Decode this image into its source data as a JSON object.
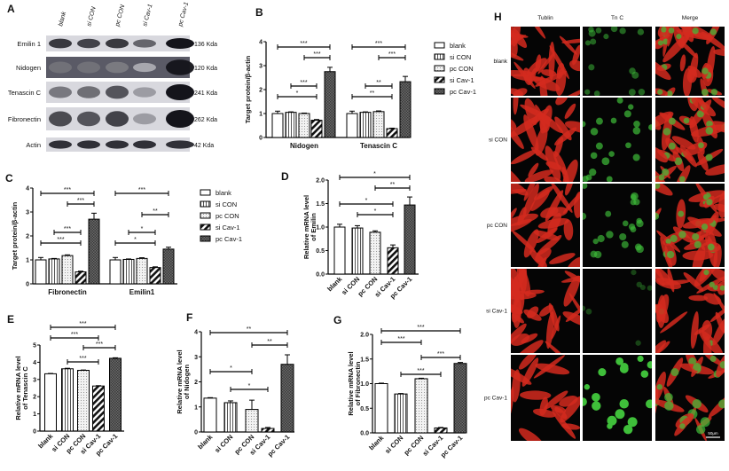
{
  "panels": {
    "A": "A",
    "B": "B",
    "C": "C",
    "D": "D",
    "E": "E",
    "F": "F",
    "G": "G",
    "H": "H"
  },
  "legend": [
    "blank",
    "si CON",
    "pc CON",
    "si Cav-1",
    "pc Cav-1"
  ],
  "blot": {
    "lanes": [
      "blank",
      "si CON",
      "pc CON",
      "si Cav-1",
      "pc Cav-1"
    ],
    "rows": [
      {
        "label": "Emilin 1",
        "kda": "136 Kda",
        "band_intensity": [
          0.8,
          0.75,
          0.8,
          0.55,
          1.0
        ]
      },
      {
        "label": "Nidogen",
        "kda": "120 Kda",
        "band_intensity": [
          0.45,
          0.45,
          0.4,
          0.15,
          0.95
        ]
      },
      {
        "label": "Tenascin C",
        "kda": "241 Kda",
        "band_intensity": [
          0.45,
          0.5,
          0.65,
          0.25,
          1.0
        ]
      },
      {
        "label": "Fibronectin",
        "kda": "262 Kda",
        "band_intensity": [
          0.7,
          0.65,
          0.75,
          0.25,
          1.0
        ]
      },
      {
        "label": "Actin",
        "kda": "42 Kda",
        "band_intensity": [
          0.85,
          0.85,
          0.85,
          0.85,
          0.85
        ]
      }
    ]
  },
  "microscopy": {
    "columns": [
      "Tublin",
      "Tn C",
      "Merge"
    ],
    "rows": [
      "blank",
      "si CON",
      "pc CON",
      "si Cav-1",
      "pc Cav-1"
    ],
    "scale_bar": "50μm",
    "colors": {
      "tublin": "#d42a1e",
      "tnc": "#3fbf3a"
    }
  },
  "chart_data": [
    {
      "panel": "B",
      "type": "bar",
      "grouped": true,
      "ylabel": "Target protein/β-actin",
      "ylim": [
        0,
        4
      ],
      "yticks": [
        "0",
        "1",
        "2",
        "3",
        "4"
      ],
      "categories": [
        "Nidogen",
        "Tenascin C"
      ],
      "series": [
        {
          "name": "blank",
          "values": [
            1.0,
            1.0
          ],
          "errors": [
            0.1,
            0.1
          ]
        },
        {
          "name": "si CON",
          "values": [
            1.05,
            1.05
          ],
          "errors": [
            0.02,
            0.02
          ]
        },
        {
          "name": "pc CON",
          "values": [
            1.0,
            1.08
          ],
          "errors": [
            0.02,
            0.03
          ]
        },
        {
          "name": "si Cav-1",
          "values": [
            0.72,
            0.37
          ],
          "errors": [
            0.03,
            0.02
          ]
        },
        {
          "name": "pc Cav-1",
          "values": [
            2.75,
            2.33
          ],
          "errors": [
            0.18,
            0.22
          ]
        }
      ],
      "significance": [
        {
          "group": 0,
          "from": 0,
          "to": 4,
          "label": "***"
        },
        {
          "group": 0,
          "from": 2,
          "to": 4,
          "label": "***"
        },
        {
          "group": 0,
          "from": 1,
          "to": 3,
          "label": "***"
        },
        {
          "group": 0,
          "from": 0,
          "to": 3,
          "label": "*"
        },
        {
          "group": 1,
          "from": 0,
          "to": 4,
          "label": "***"
        },
        {
          "group": 1,
          "from": 2,
          "to": 4,
          "label": "***"
        },
        {
          "group": 1,
          "from": 0,
          "to": 3,
          "label": "**"
        },
        {
          "group": 1,
          "from": 1,
          "to": 3,
          "label": "**"
        }
      ]
    },
    {
      "panel": "C",
      "type": "bar",
      "grouped": true,
      "ylabel": "Target protein/β-actin",
      "ylim": [
        0,
        4
      ],
      "yticks": [
        "0",
        "1",
        "2",
        "3",
        "4"
      ],
      "categories": [
        "Fibronectin",
        "Emilin1"
      ],
      "series": [
        {
          "name": "blank",
          "values": [
            1.0,
            1.0
          ],
          "errors": [
            0.1,
            0.1
          ]
        },
        {
          "name": "si CON",
          "values": [
            1.04,
            1.02
          ],
          "errors": [
            0.02,
            0.02
          ]
        },
        {
          "name": "pc CON",
          "values": [
            1.18,
            1.06
          ],
          "errors": [
            0.03,
            0.03
          ]
        },
        {
          "name": "si Cav-1",
          "values": [
            0.5,
            0.68
          ],
          "errors": [
            0.03,
            0.03
          ]
        },
        {
          "name": "pc Cav-1",
          "values": [
            2.7,
            1.45
          ],
          "errors": [
            0.25,
            0.08
          ]
        }
      ],
      "significance": [
        {
          "group": 0,
          "from": 0,
          "to": 4,
          "label": "***"
        },
        {
          "group": 0,
          "from": 2,
          "to": 4,
          "label": "***"
        },
        {
          "group": 0,
          "from": 1,
          "to": 3,
          "label": "***"
        },
        {
          "group": 0,
          "from": 0,
          "to": 3,
          "label": "***"
        },
        {
          "group": 1,
          "from": 0,
          "to": 4,
          "label": "***"
        },
        {
          "group": 1,
          "from": 0,
          "to": 3,
          "label": "*"
        },
        {
          "group": 1,
          "from": 2,
          "to": 4,
          "label": "**"
        },
        {
          "group": 1,
          "from": 1,
          "to": 3,
          "label": "*"
        }
      ]
    },
    {
      "panel": "D",
      "type": "bar",
      "ylabel": "Relative mRNA level",
      "ylabel2": "of Emilin",
      "ylim": [
        0,
        2
      ],
      "yticks": [
        "0.0",
        "0.5",
        "1.0",
        "1.5",
        "2.0"
      ],
      "categories": [
        "blank",
        "si CON",
        "pc CON",
        "si Cav-1",
        "pc Cav-1"
      ],
      "values": [
        1.0,
        0.98,
        0.89,
        0.56,
        1.47
      ],
      "errors": [
        0.06,
        0.05,
        0.03,
        0.06,
        0.17
      ],
      "significance": [
        {
          "from": 0,
          "to": 4,
          "label": "*"
        },
        {
          "from": 2,
          "to": 4,
          "label": "**"
        },
        {
          "from": 0,
          "to": 3,
          "label": "*"
        },
        {
          "from": 1,
          "to": 3,
          "label": "*"
        }
      ]
    },
    {
      "panel": "E",
      "type": "bar",
      "ylabel": "Relative mRNA level",
      "ylabel2": "of Tenascin C",
      "ylim": [
        0,
        5
      ],
      "yticks": [
        "0",
        "1",
        "2",
        "3",
        "4",
        "5"
      ],
      "categories": [
        "blank",
        "si CON",
        "pc CON",
        "si Cav-1",
        "pc Cav-1"
      ],
      "values": [
        3.33,
        3.62,
        3.53,
        2.62,
        4.23
      ],
      "errors": [
        0.02,
        0.03,
        0.02,
        0.02,
        0.03
      ],
      "significance": [
        {
          "from": 0,
          "to": 4,
          "label": "***"
        },
        {
          "from": 0,
          "to": 3,
          "label": "***"
        },
        {
          "from": 2,
          "to": 4,
          "label": "***"
        },
        {
          "from": 1,
          "to": 3,
          "label": "***"
        }
      ]
    },
    {
      "panel": "F",
      "type": "bar",
      "ylabel": "Relative mRNA level",
      "ylabel2": "of Nidogen",
      "ylim": [
        0,
        4
      ],
      "yticks": [
        "0",
        "1",
        "2",
        "3",
        "4"
      ],
      "categories": [
        "blank",
        "si CON",
        "pc CON",
        "si Cav-1",
        "pc Cav-1"
      ],
      "values": [
        1.35,
        1.17,
        0.9,
        0.14,
        2.7
      ],
      "errors": [
        0.02,
        0.07,
        0.37,
        0.04,
        0.38
      ],
      "significance": [
        {
          "from": 0,
          "to": 4,
          "label": "**"
        },
        {
          "from": 2,
          "to": 4,
          "label": "**"
        },
        {
          "from": 0,
          "to": 2,
          "label": "*"
        },
        {
          "from": 1,
          "to": 3,
          "label": "*"
        }
      ]
    },
    {
      "panel": "G",
      "type": "bar",
      "ylabel": "Relative mRNA level",
      "ylabel2": "of Fibronectin",
      "ylim": [
        0,
        2
      ],
      "yticks": [
        "0.0",
        "0.5",
        "1.0",
        "1.5",
        "2.0"
      ],
      "categories": [
        "blank",
        "si CON",
        "pc CON",
        "si Cav-1",
        "pc Cav-1"
      ],
      "values": [
        1.0,
        0.79,
        1.1,
        0.1,
        1.41
      ],
      "errors": [
        0.01,
        0.01,
        0.01,
        0.01,
        0.02
      ],
      "significance": [
        {
          "from": 0,
          "to": 4,
          "label": "***"
        },
        {
          "from": 0,
          "to": 2,
          "label": "***"
        },
        {
          "from": 2,
          "to": 4,
          "label": "***"
        },
        {
          "from": 1,
          "to": 3,
          "label": "***"
        }
      ]
    }
  ]
}
